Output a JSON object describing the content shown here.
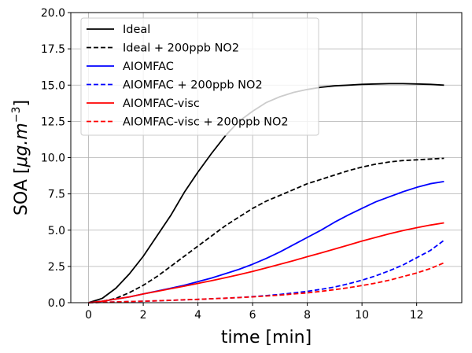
{
  "chart_data": {
    "type": "line",
    "title": "",
    "xlabel": "time [min]",
    "ylabel_main": "SOA [",
    "ylabel_math": "μg.m",
    "ylabel_sup": "−3",
    "ylabel_close": "]",
    "xlim": [
      -0.65,
      13.65
    ],
    "ylim": [
      0,
      20
    ],
    "xticks": [
      0,
      2,
      4,
      6,
      8,
      10,
      12
    ],
    "xtick_labels": [
      "0",
      "2",
      "4",
      "6",
      "8",
      "10",
      "12"
    ],
    "yticks": [
      0,
      2.5,
      5,
      7.5,
      10,
      12.5,
      15,
      17.5,
      20
    ],
    "ytick_labels": [
      "0.0",
      "2.5",
      "5.0",
      "7.5",
      "10.0",
      "12.5",
      "15.0",
      "17.5",
      "20.0"
    ],
    "grid": true,
    "legend_position": "top-left",
    "x": [
      0,
      0.5,
      1,
      1.5,
      2,
      2.5,
      3,
      3.5,
      4,
      4.5,
      5,
      5.5,
      6,
      6.5,
      7,
      7.5,
      8,
      8.5,
      9,
      9.5,
      10,
      10.5,
      11,
      11.5,
      12,
      12.5,
      13
    ],
    "series": [
      {
        "name": "Ideal",
        "color": "#000000",
        "dash": "solid",
        "values": [
          0,
          0.3,
          1.0,
          2.0,
          3.2,
          4.6,
          6.0,
          7.6,
          9.0,
          10.3,
          11.5,
          12.5,
          13.2,
          13.8,
          14.2,
          14.5,
          14.7,
          14.85,
          14.95,
          15.0,
          15.05,
          15.08,
          15.1,
          15.1,
          15.08,
          15.05,
          15.0
        ]
      },
      {
        "name": "Ideal + 200ppb NO2",
        "color": "#000000",
        "dash": "dashed",
        "values": [
          0,
          0.1,
          0.3,
          0.7,
          1.2,
          1.8,
          2.5,
          3.2,
          3.9,
          4.6,
          5.3,
          5.9,
          6.5,
          7.0,
          7.4,
          7.8,
          8.2,
          8.5,
          8.8,
          9.1,
          9.35,
          9.55,
          9.7,
          9.8,
          9.85,
          9.9,
          9.95
        ]
      },
      {
        "name": "AIOMFAC",
        "color": "#0000ff",
        "dash": "solid",
        "values": [
          0,
          0.1,
          0.25,
          0.4,
          0.6,
          0.8,
          1.0,
          1.2,
          1.45,
          1.7,
          2.0,
          2.3,
          2.65,
          3.05,
          3.5,
          4.0,
          4.5,
          5.0,
          5.55,
          6.05,
          6.5,
          6.95,
          7.3,
          7.65,
          7.95,
          8.2,
          8.35
        ]
      },
      {
        "name": "AIOMFAC + 200ppb NO2",
        "color": "#0000ff",
        "dash": "dashed",
        "values": [
          0,
          0.02,
          0.05,
          0.08,
          0.1,
          0.13,
          0.16,
          0.2,
          0.23,
          0.27,
          0.31,
          0.36,
          0.42,
          0.49,
          0.57,
          0.67,
          0.78,
          0.92,
          1.08,
          1.3,
          1.55,
          1.85,
          2.2,
          2.6,
          3.1,
          3.6,
          4.3
        ]
      },
      {
        "name": "AIOMFAC-visc",
        "color": "#ff0000",
        "dash": "solid",
        "values": [
          0,
          0.1,
          0.25,
          0.4,
          0.6,
          0.78,
          0.96,
          1.14,
          1.33,
          1.52,
          1.72,
          1.93,
          2.15,
          2.4,
          2.65,
          2.9,
          3.17,
          3.43,
          3.7,
          3.97,
          4.25,
          4.5,
          4.75,
          4.97,
          5.17,
          5.35,
          5.5
        ]
      },
      {
        "name": "AIOMFAC-visc + 200ppb NO2",
        "color": "#ff0000",
        "dash": "dashed",
        "values": [
          0,
          0.02,
          0.05,
          0.08,
          0.1,
          0.13,
          0.16,
          0.2,
          0.23,
          0.27,
          0.31,
          0.35,
          0.4,
          0.46,
          0.52,
          0.6,
          0.68,
          0.78,
          0.9,
          1.03,
          1.18,
          1.35,
          1.55,
          1.8,
          2.05,
          2.35,
          2.75
        ]
      }
    ]
  }
}
